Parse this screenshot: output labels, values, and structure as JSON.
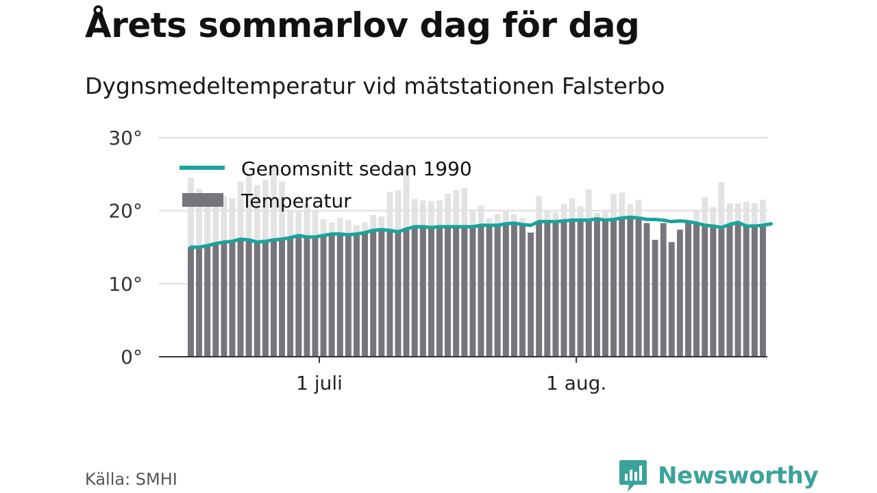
{
  "title": "Årets sommarlov dag för dag",
  "subtitle": "Dygnsmedeltemperatur vid mätstationen Falsterbo",
  "source": "Källa: SMHI",
  "brand": {
    "name": "Newsworthy",
    "icon": "newsworthy-logo-icon",
    "color": "#3ba39b"
  },
  "chart_data": {
    "type": "bar",
    "x_start": "2025-06-15",
    "x_ticks": [
      {
        "date": "2025-07-01",
        "label": "1 juli"
      },
      {
        "date": "2025-08-01",
        "label": "1 aug."
      }
    ],
    "ylim": [
      0,
      30
    ],
    "yticks": [
      {
        "value": 0,
        "label": "0°"
      },
      {
        "value": 10,
        "label": "10°"
      },
      {
        "value": 20,
        "label": "20°"
      },
      {
        "value": 30,
        "label": "30°"
      }
    ],
    "grid": true,
    "legend_position": "top-left",
    "colors": {
      "bar": "#76757b",
      "bar_background": "#e3e3e3",
      "average": "#1aa39b"
    },
    "series": [
      {
        "name": "Temperatur",
        "values": [
          24.5,
          23.0,
          22.0,
          21.0,
          22.0,
          21.7,
          24.0,
          25.0,
          23.5,
          24.2,
          26.0,
          24.0,
          20.0,
          20.0,
          21.0,
          20.0,
          18.8,
          18.4,
          19.0,
          18.7,
          18.0,
          18.4,
          19.4,
          19.2,
          22.6,
          22.8,
          25.8,
          21.6,
          21.4,
          21.3,
          21.4,
          22.3,
          22.8,
          23.1,
          20.2,
          20.7,
          19.0,
          19.5,
          20.0,
          19.5,
          19.0,
          17.0,
          22.0,
          20.0,
          19.8,
          20.9,
          21.7,
          20.6,
          22.9,
          19.7,
          20.0,
          22.3,
          22.5,
          20.9,
          21.5,
          18.3,
          16.0,
          18.3,
          15.7,
          17.4,
          18.6,
          20.0,
          21.9,
          20.5,
          23.9,
          21.0,
          21.0,
          21.2,
          21.0,
          21.5
        ]
      },
      {
        "name": "Genomsnitt sedan 1990",
        "values": [
          15.0,
          15.0,
          15.2,
          15.5,
          15.7,
          15.8,
          16.1,
          16.0,
          15.7,
          15.8,
          16.0,
          16.1,
          16.3,
          16.6,
          16.4,
          16.4,
          16.6,
          16.8,
          16.8,
          16.7,
          16.8,
          17.0,
          17.3,
          17.4,
          17.3,
          17.1,
          17.5,
          17.8,
          17.8,
          17.7,
          17.8,
          17.8,
          17.8,
          17.8,
          17.8,
          18.0,
          18.0,
          18.0,
          18.2,
          18.3,
          18.1,
          18.0,
          18.5,
          18.5,
          18.5,
          18.6,
          18.7,
          18.7,
          18.7,
          18.9,
          18.7,
          18.8,
          19.0,
          19.1,
          19.0,
          18.8,
          18.8,
          18.7,
          18.5,
          18.6,
          18.5,
          18.3,
          18.0,
          17.9,
          17.7,
          18.1,
          18.4,
          17.9,
          17.9,
          18.0,
          18.2
        ]
      }
    ]
  }
}
